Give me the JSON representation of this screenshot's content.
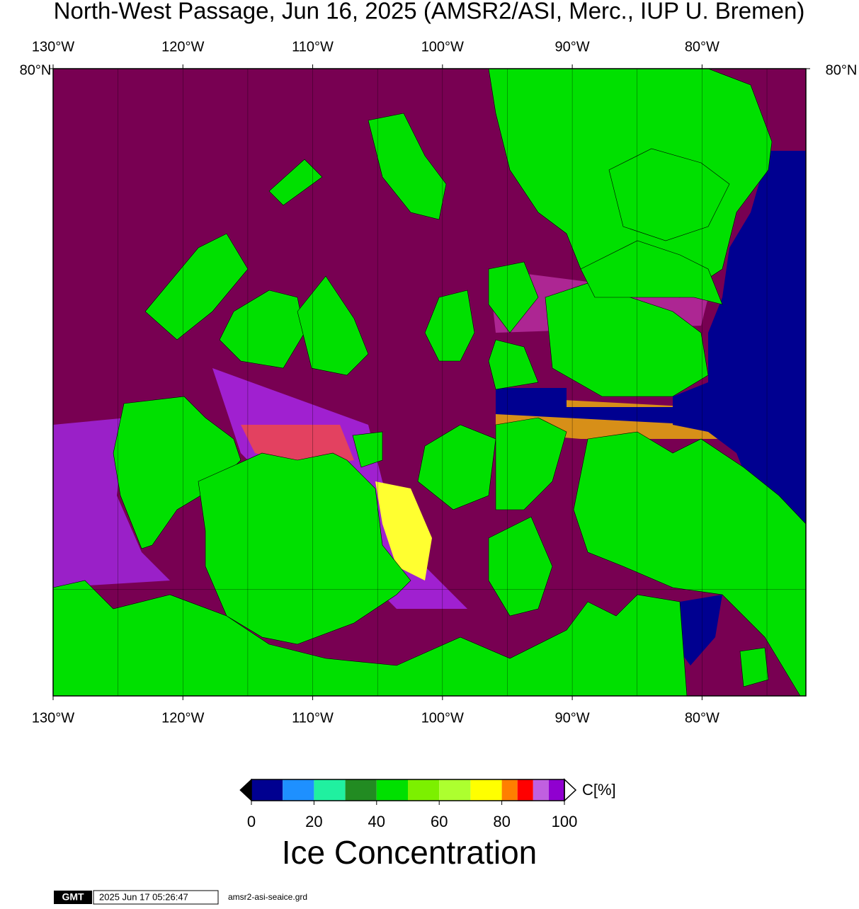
{
  "title": "North-West Passage, Jun 16, 2025 (AMSR2/ASI, Merc., IUP U. Bremen)",
  "map": {
    "xlim": [
      -130,
      -72
    ],
    "ylim": [
      67,
      80
    ],
    "xticks": [
      {
        "value": -130,
        "label": "130°W"
      },
      {
        "value": -120,
        "label": "120°W"
      },
      {
        "value": -110,
        "label": "110°W"
      },
      {
        "value": -100,
        "label": "100°W"
      },
      {
        "value": -90,
        "label": "90°W"
      },
      {
        "value": -80,
        "label": "80°W"
      }
    ],
    "yticks": [
      {
        "value": 80,
        "label": "80°N"
      }
    ],
    "xgrid": [
      -125,
      -120,
      -115,
      -110,
      -105,
      -100,
      -95,
      -90,
      -85,
      -80,
      -75
    ],
    "ygrid": [
      70
    ]
  },
  "colorbar": {
    "bounds": [
      0,
      10,
      20,
      30,
      40,
      50,
      60,
      70,
      80,
      85,
      90,
      95,
      100
    ],
    "colors": [
      "#000090",
      "#1e90ff",
      "#20f0a0",
      "#228b22",
      "#00e000",
      "#7cf000",
      "#adff2f",
      "#ffff00",
      "#ff7f00",
      "#ff0000",
      "#c060e0",
      "#9000d0"
    ],
    "ticks": [
      0,
      20,
      40,
      60,
      80,
      100
    ],
    "label": "C[%]",
    "title": "Ice Concentration"
  },
  "footer": {
    "logo": "GMT",
    "timestamp": "2025 Jun 17 05:26:47",
    "file": "amsr2-asi-seaice.grd"
  }
}
